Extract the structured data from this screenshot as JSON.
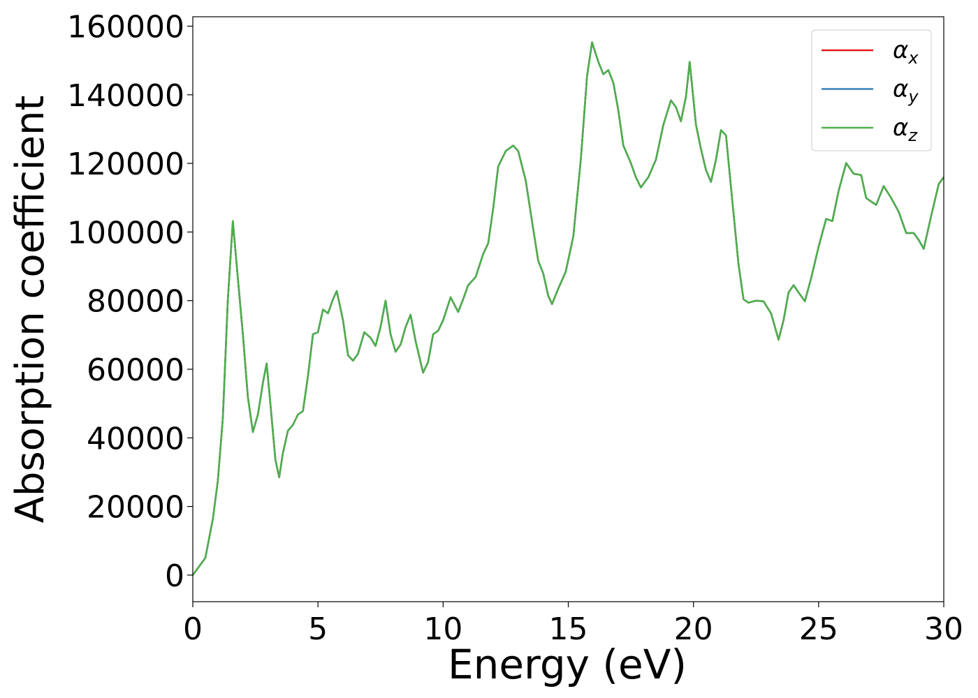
{
  "chart_data": {
    "type": "line",
    "xlabel": "Energy (eV)",
    "ylabel": "Absorption coefficient",
    "xlim": [
      0,
      30
    ],
    "ylim": [
      -7750,
      162750
    ],
    "xticks": [
      0,
      5,
      10,
      15,
      20,
      25,
      30
    ],
    "yticks": [
      0,
      20000,
      40000,
      60000,
      80000,
      100000,
      120000,
      140000,
      160000
    ],
    "legend": "upper right",
    "x": [
      0,
      0.5,
      0.8,
      1.0,
      1.2,
      1.4,
      1.6,
      1.8,
      2.0,
      2.2,
      2.4,
      2.6,
      2.8,
      2.95,
      3.1,
      3.3,
      3.45,
      3.6,
      3.8,
      4.0,
      4.2,
      4.4,
      4.6,
      4.8,
      5.0,
      5.2,
      5.4,
      5.6,
      5.75,
      6.0,
      6.2,
      6.4,
      6.6,
      6.85,
      7.1,
      7.3,
      7.5,
      7.7,
      7.9,
      8.1,
      8.3,
      8.5,
      8.7,
      8.9,
      9.2,
      9.4,
      9.6,
      9.8,
      10.0,
      10.3,
      10.6,
      10.8,
      11.0,
      11.3,
      11.6,
      11.8,
      12.0,
      12.2,
      12.5,
      12.8,
      13.0,
      13.3,
      13.6,
      13.8,
      14.0,
      14.2,
      14.35,
      14.6,
      14.9,
      15.2,
      15.5,
      15.75,
      15.95,
      16.2,
      16.4,
      16.6,
      16.8,
      17.0,
      17.2,
      17.5,
      17.7,
      17.9,
      18.2,
      18.5,
      18.8,
      19.1,
      19.3,
      19.5,
      19.7,
      19.85,
      20.1,
      20.3,
      20.5,
      20.7,
      20.9,
      21.1,
      21.3,
      21.5,
      21.8,
      22.0,
      22.2,
      22.5,
      22.8,
      23.1,
      23.4,
      23.6,
      23.8,
      24.0,
      24.2,
      24.45,
      24.7,
      25.0,
      25.3,
      25.55,
      25.8,
      26.1,
      26.4,
      26.7,
      26.9,
      27.1,
      27.3,
      27.6,
      27.9,
      28.2,
      28.5,
      28.8,
      29.0,
      29.2,
      29.5,
      29.8,
      30.0
    ],
    "series": [
      {
        "name": "αx",
        "color": "#e41a1c",
        "values": [
          0,
          5000,
          16300,
          27500,
          45800,
          80400,
          103200,
          86500,
          70200,
          51900,
          41700,
          46800,
          56000,
          61700,
          49900,
          33600,
          28500,
          35600,
          42100,
          43800,
          46800,
          47800,
          58000,
          70200,
          70800,
          77400,
          76300,
          80400,
          82800,
          74300,
          64100,
          62500,
          64500,
          70800,
          69200,
          66800,
          72300,
          80000,
          70200,
          65100,
          67200,
          72300,
          75900,
          68200,
          59000,
          62100,
          70200,
          71200,
          74300,
          81000,
          76700,
          80400,
          84500,
          86900,
          93600,
          96700,
          106900,
          119100,
          123600,
          125200,
          123600,
          115000,
          100800,
          91600,
          87900,
          81400,
          79000,
          83500,
          88500,
          98700,
          121100,
          145500,
          155300,
          149600,
          146000,
          147200,
          143500,
          135400,
          125200,
          120100,
          116000,
          113000,
          116000,
          121100,
          131300,
          138400,
          136400,
          132300,
          139400,
          149600,
          131300,
          124200,
          118100,
          114600,
          121100,
          129700,
          128200,
          113000,
          90600,
          80400,
          79400,
          80000,
          79800,
          76300,
          68600,
          74300,
          82400,
          84500,
          82400,
          79800,
          86500,
          95700,
          103800,
          103200,
          112000,
          120100,
          117000,
          116600,
          109900,
          108900,
          107900,
          113400,
          109900,
          105900,
          99700,
          99700,
          97700,
          95100,
          104800,
          114000,
          116000
        ]
      },
      {
        "name": "αy",
        "color": "#377eb8",
        "values": [
          0,
          5000,
          16300,
          27500,
          45800,
          80400,
          103200,
          86500,
          70200,
          51900,
          41700,
          46800,
          56000,
          61700,
          49900,
          33600,
          28500,
          35600,
          42100,
          43800,
          46800,
          47800,
          58000,
          70200,
          70800,
          77400,
          76300,
          80400,
          82800,
          74300,
          64100,
          62500,
          64500,
          70800,
          69200,
          66800,
          72300,
          80000,
          70200,
          65100,
          67200,
          72300,
          75900,
          68200,
          59000,
          62100,
          70200,
          71200,
          74300,
          81000,
          76700,
          80400,
          84500,
          86900,
          93600,
          96700,
          106900,
          119100,
          123600,
          125200,
          123600,
          115000,
          100800,
          91600,
          87900,
          81400,
          79000,
          83500,
          88500,
          98700,
          121100,
          145500,
          155300,
          149600,
          146000,
          147200,
          143500,
          135400,
          125200,
          120100,
          116000,
          113000,
          116000,
          121100,
          131300,
          138400,
          136400,
          132300,
          139400,
          149600,
          131300,
          124200,
          118100,
          114600,
          121100,
          129700,
          128200,
          113000,
          90600,
          80400,
          79400,
          80000,
          79800,
          76300,
          68600,
          74300,
          82400,
          84500,
          82400,
          79800,
          86500,
          95700,
          103800,
          103200,
          112000,
          120100,
          117000,
          116600,
          109900,
          108900,
          107900,
          113400,
          109900,
          105900,
          99700,
          99700,
          97700,
          95100,
          104800,
          114000,
          116000
        ]
      },
      {
        "name": "αz",
        "color": "#4daf4a",
        "values": [
          0,
          5000,
          16300,
          27500,
          45800,
          80400,
          103200,
          86500,
          70200,
          51900,
          41700,
          46800,
          56000,
          61700,
          49900,
          33600,
          28500,
          35600,
          42100,
          43800,
          46800,
          47800,
          58000,
          70200,
          70800,
          77400,
          76300,
          80400,
          82800,
          74300,
          64100,
          62500,
          64500,
          70800,
          69200,
          66800,
          72300,
          80000,
          70200,
          65100,
          67200,
          72300,
          75900,
          68200,
          59000,
          62100,
          70200,
          71200,
          74300,
          81000,
          76700,
          80400,
          84500,
          86900,
          93600,
          96700,
          106900,
          119100,
          123600,
          125200,
          123600,
          115000,
          100800,
          91600,
          87900,
          81400,
          79000,
          83500,
          88500,
          98700,
          121100,
          145500,
          155300,
          149600,
          146000,
          147200,
          143500,
          135400,
          125200,
          120100,
          116000,
          113000,
          116000,
          121100,
          131300,
          138400,
          136400,
          132300,
          139400,
          149600,
          131300,
          124200,
          118100,
          114600,
          121100,
          129700,
          128200,
          113000,
          90600,
          80400,
          79400,
          80000,
          79800,
          76300,
          68600,
          74300,
          82400,
          84500,
          82400,
          79800,
          86500,
          95700,
          103800,
          103200,
          112000,
          120100,
          117000,
          116600,
          109900,
          108900,
          107900,
          113400,
          109900,
          105900,
          99700,
          99700,
          97700,
          95100,
          104800,
          114000,
          116000
        ]
      }
    ]
  }
}
